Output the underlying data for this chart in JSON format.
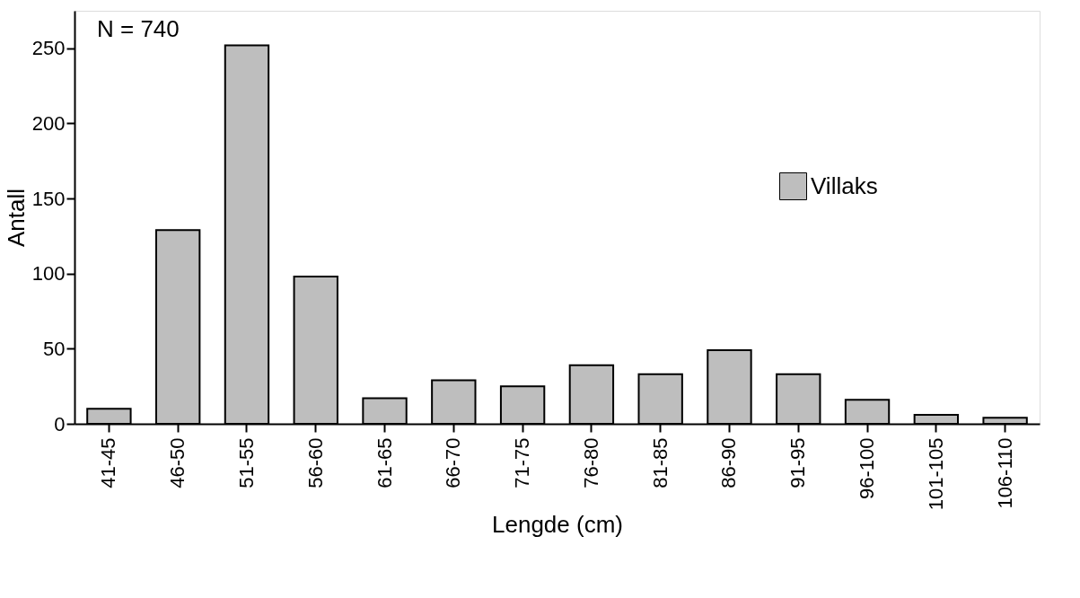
{
  "chart_data": {
    "type": "bar",
    "xlabel": "Lengde (cm)",
    "ylabel": "Antall",
    "categories": [
      "41-45",
      "46-50",
      "51-55",
      "56-60",
      "61-65",
      "66-70",
      "71-75",
      "76-80",
      "81-85",
      "86-90",
      "91-95",
      "96-100",
      "101-105",
      "106-110"
    ],
    "series": [
      {
        "name": "Villaks",
        "color": "#bebebe",
        "values": [
          10,
          129,
          252,
          98,
          17,
          29,
          25,
          39,
          33,
          49,
          33,
          16,
          6,
          4
        ]
      }
    ],
    "ylim": [
      0,
      275
    ],
    "yticks": [
      0,
      50,
      100,
      150,
      200,
      250
    ],
    "grid": false,
    "legend": "top right",
    "annotations": [
      "N = 740"
    ]
  }
}
